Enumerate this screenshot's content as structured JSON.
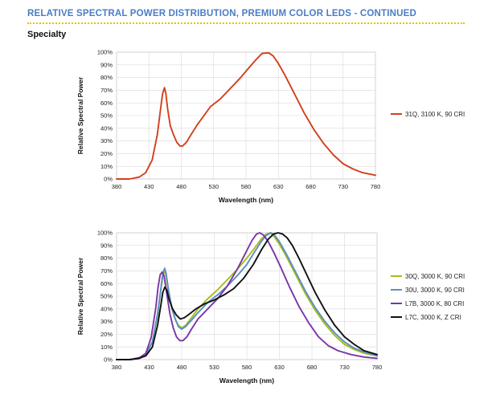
{
  "header": {
    "title": "RELATIVE SPECTRAL POWER DISTRIBUTION, PREMIUM COLOR LEDS - CONTINUED",
    "section": "Specialty"
  },
  "chart_data": [
    {
      "type": "line",
      "xlabel": "Wavelength (nm)",
      "ylabel": "Relative Spectral Power",
      "xlim": [
        380,
        780
      ],
      "ylim": [
        0,
        100
      ],
      "x_ticks": [
        380,
        430,
        480,
        530,
        580,
        630,
        680,
        730,
        780
      ],
      "y_ticks": [
        "0%",
        "10%",
        "20%",
        "30%",
        "40%",
        "50%",
        "60%",
        "70%",
        "80%",
        "90%",
        "100%"
      ],
      "grid": true,
      "legend": "right",
      "series": [
        {
          "name": "31Q, 3100 K, 90 CRI",
          "color": "#d2401c",
          "points": [
            [
              380,
              0
            ],
            [
              400,
              0
            ],
            [
              415,
              1.5
            ],
            [
              425,
              5
            ],
            [
              435,
              15
            ],
            [
              443,
              35
            ],
            [
              448,
              55
            ],
            [
              451,
              67
            ],
            [
              454,
              72
            ],
            [
              456,
              68
            ],
            [
              459,
              55
            ],
            [
              463,
              42
            ],
            [
              468,
              35
            ],
            [
              473,
              29
            ],
            [
              478,
              26
            ],
            [
              482,
              26
            ],
            [
              488,
              29
            ],
            [
              495,
              35
            ],
            [
              505,
              43
            ],
            [
              515,
              50
            ],
            [
              525,
              57
            ],
            [
              540,
              63
            ],
            [
              555,
              71
            ],
            [
              570,
              79
            ],
            [
              585,
              88
            ],
            [
              597,
              95
            ],
            [
              605,
              99
            ],
            [
              615,
              99.5
            ],
            [
              622,
              97
            ],
            [
              630,
              91
            ],
            [
              640,
              82
            ],
            [
              655,
              67
            ],
            [
              670,
              52
            ],
            [
              685,
              39
            ],
            [
              700,
              28
            ],
            [
              715,
              19
            ],
            [
              730,
              12
            ],
            [
              745,
              8
            ],
            [
              760,
              5
            ],
            [
              780,
              3
            ]
          ]
        }
      ]
    },
    {
      "type": "line",
      "xlabel": "Wavelength (nm)",
      "ylabel": "Relative Spectral Power",
      "xlim": [
        380,
        780
      ],
      "ylim": [
        0,
        100
      ],
      "x_ticks": [
        380,
        430,
        480,
        530,
        580,
        630,
        680,
        730,
        780
      ],
      "y_ticks": [
        "0%",
        "10%",
        "20%",
        "30%",
        "40%",
        "50%",
        "60%",
        "70%",
        "80%",
        "90%",
        "100%"
      ],
      "grid": true,
      "legend": "right",
      "series": [
        {
          "name": "30Q, 3000 K, 90 CRI",
          "color": "#a8bc18",
          "points": [
            [
              380,
              0
            ],
            [
              400,
              0
            ],
            [
              415,
              1
            ],
            [
              425,
              4
            ],
            [
              435,
              14
            ],
            [
              443,
              35
            ],
            [
              448,
              55
            ],
            [
              451,
              66
            ],
            [
              454,
              70
            ],
            [
              456,
              66
            ],
            [
              460,
              52
            ],
            [
              465,
              40
            ],
            [
              470,
              32
            ],
            [
              475,
              27
            ],
            [
              480,
              25
            ],
            [
              486,
              27
            ],
            [
              495,
              33
            ],
            [
              505,
              40
            ],
            [
              520,
              48
            ],
            [
              535,
              55
            ],
            [
              550,
              63
            ],
            [
              565,
              71
            ],
            [
              580,
              80
            ],
            [
              592,
              88
            ],
            [
              602,
              95
            ],
            [
              610,
              99
            ],
            [
              616,
              100
            ],
            [
              622,
              97
            ],
            [
              630,
              91
            ],
            [
              640,
              82
            ],
            [
              655,
              67
            ],
            [
              670,
              52
            ],
            [
              685,
              39
            ],
            [
              700,
              28
            ],
            [
              715,
              19
            ],
            [
              730,
              12
            ],
            [
              745,
              8
            ],
            [
              760,
              5
            ],
            [
              780,
              3
            ]
          ]
        },
        {
          "name": "30U, 3000 K, 90 CRI",
          "color": "#5b8ec4",
          "points": [
            [
              380,
              0
            ],
            [
              400,
              0
            ],
            [
              415,
              1
            ],
            [
              425,
              4
            ],
            [
              435,
              14
            ],
            [
              443,
              36
            ],
            [
              448,
              56
            ],
            [
              451,
              68
            ],
            [
              454,
              72
            ],
            [
              456,
              68
            ],
            [
              460,
              54
            ],
            [
              465,
              41
            ],
            [
              470,
              32
            ],
            [
              475,
              26
            ],
            [
              480,
              24
            ],
            [
              486,
              26
            ],
            [
              495,
              31
            ],
            [
              505,
              37
            ],
            [
              520,
              45
            ],
            [
              535,
              51
            ],
            [
              550,
              58
            ],
            [
              565,
              66
            ],
            [
              580,
              75
            ],
            [
              592,
              85
            ],
            [
              602,
              93
            ],
            [
              610,
              98
            ],
            [
              617,
              100
            ],
            [
              623,
              98
            ],
            [
              630,
              93
            ],
            [
              640,
              84
            ],
            [
              655,
              69
            ],
            [
              670,
              54
            ],
            [
              685,
              41
            ],
            [
              700,
              30
            ],
            [
              715,
              21
            ],
            [
              730,
              14
            ],
            [
              745,
              9
            ],
            [
              760,
              6
            ],
            [
              780,
              3
            ]
          ]
        },
        {
          "name": "L7B, 3000 K, 80 CRI",
          "color": "#7a35a8",
          "points": [
            [
              380,
              0
            ],
            [
              400,
              0
            ],
            [
              415,
              1.5
            ],
            [
              425,
              5
            ],
            [
              433,
              17
            ],
            [
              440,
              40
            ],
            [
              444,
              58
            ],
            [
              447,
              67
            ],
            [
              450,
              69
            ],
            [
              453,
              66
            ],
            [
              457,
              52
            ],
            [
              462,
              36
            ],
            [
              467,
              25
            ],
            [
              472,
              18
            ],
            [
              477,
              15
            ],
            [
              482,
              15
            ],
            [
              488,
              18
            ],
            [
              495,
              24
            ],
            [
              505,
              32
            ],
            [
              520,
              40
            ],
            [
              535,
              48
            ],
            [
              550,
              58
            ],
            [
              565,
              71
            ],
            [
              578,
              84
            ],
            [
              588,
              94
            ],
            [
              595,
              99
            ],
            [
              600,
              100
            ],
            [
              606,
              98
            ],
            [
              613,
              93
            ],
            [
              622,
              84
            ],
            [
              632,
              73
            ],
            [
              645,
              58
            ],
            [
              660,
              42
            ],
            [
              675,
              29
            ],
            [
              690,
              18
            ],
            [
              705,
              11
            ],
            [
              720,
              7
            ],
            [
              740,
              4
            ],
            [
              760,
              2
            ],
            [
              780,
              1
            ]
          ]
        },
        {
          "name": "L7C, 3000 K, Z CRI",
          "color": "#111111",
          "points": [
            [
              380,
              0
            ],
            [
              400,
              0
            ],
            [
              415,
              1
            ],
            [
              425,
              3
            ],
            [
              435,
              10
            ],
            [
              443,
              27
            ],
            [
              448,
              43
            ],
            [
              451,
              53
            ],
            [
              454,
              57
            ],
            [
              457,
              55
            ],
            [
              461,
              47
            ],
            [
              466,
              40
            ],
            [
              472,
              35
            ],
            [
              478,
              32
            ],
            [
              484,
              33
            ],
            [
              492,
              36
            ],
            [
              502,
              40
            ],
            [
              515,
              44
            ],
            [
              530,
              47
            ],
            [
              545,
              51
            ],
            [
              560,
              56
            ],
            [
              575,
              64
            ],
            [
              590,
              75
            ],
            [
              603,
              87
            ],
            [
              613,
              95
            ],
            [
              621,
              99
            ],
            [
              628,
              100
            ],
            [
              635,
              99
            ],
            [
              642,
              96
            ],
            [
              650,
              90
            ],
            [
              660,
              80
            ],
            [
              672,
              67
            ],
            [
              685,
              53
            ],
            [
              700,
              39
            ],
            [
              715,
              27
            ],
            [
              730,
              18
            ],
            [
              745,
              12
            ],
            [
              760,
              7
            ],
            [
              780,
              4
            ]
          ]
        }
      ]
    }
  ]
}
